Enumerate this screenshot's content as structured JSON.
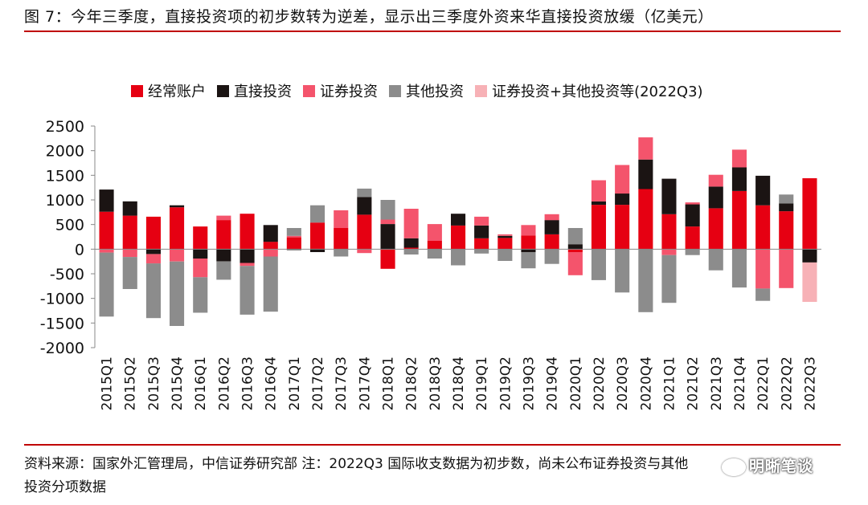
{
  "title": "图 7：今年三季度，直接投资项的初步数转为逆差，显示出三季度外资来华直接投资放缓（亿美元）",
  "source_line1": "资料来源：国家外汇管理局，中信证券研究部 注：2022Q3 国际收支数据为初步数，尚未公布证券投资与其他",
  "source_line2": "投资分项数据",
  "watermark": "明晰笔谈",
  "chart_data": {
    "type": "bar",
    "stacked": true,
    "categories": [
      "2015Q1",
      "2015Q2",
      "2015Q3",
      "2015Q4",
      "2016Q1",
      "2016Q2",
      "2016Q3",
      "2016Q4",
      "2017Q1",
      "2017Q2",
      "2017Q3",
      "2017Q4",
      "2018Q1",
      "2018Q2",
      "2018Q3",
      "2018Q4",
      "2019Q1",
      "2019Q2",
      "2019Q3",
      "2019Q4",
      "2020Q1",
      "2020Q2",
      "2020Q3",
      "2020Q4",
      "2021Q1",
      "2021Q2",
      "2021Q3",
      "2021Q4",
      "2022Q1",
      "2022Q2",
      "2022Q3"
    ],
    "series": [
      {
        "name": "经常账户",
        "color": "#e60012",
        "values": [
          760,
          680,
          660,
          850,
          460,
          590,
          720,
          150,
          240,
          540,
          430,
          700,
          -400,
          30,
          170,
          480,
          220,
          230,
          280,
          300,
          -60,
          900,
          900,
          1220,
          710,
          460,
          830,
          1180,
          890,
          770,
          1440
        ]
      },
      {
        "name": "直接投资",
        "color": "#1b1413",
        "values": [
          450,
          290,
          -100,
          40,
          -190,
          -250,
          -280,
          340,
          -20,
          -60,
          0,
          360,
          510,
          190,
          0,
          240,
          260,
          40,
          -60,
          290,
          100,
          70,
          230,
          600,
          720,
          450,
          440,
          480,
          600,
          160,
          -270
        ]
      },
      {
        "name": "证券投资",
        "color": "#f4546c",
        "values": [
          -70,
          -160,
          -190,
          -250,
          -380,
          90,
          -60,
          -150,
          30,
          0,
          360,
          -80,
          90,
          600,
          340,
          0,
          180,
          30,
          210,
          120,
          -470,
          430,
          580,
          450,
          -120,
          40,
          240,
          360,
          -800,
          -790,
          0
        ]
      },
      {
        "name": "其他投资",
        "color": "#8c8c8c",
        "values": [
          -1300,
          -650,
          -1110,
          -1310,
          -720,
          -370,
          -990,
          -1120,
          160,
          350,
          -150,
          170,
          400,
          -110,
          -190,
          -330,
          -90,
          -240,
          -330,
          -300,
          330,
          -630,
          -880,
          -1280,
          -970,
          -120,
          -430,
          -780,
          -250,
          180,
          0
        ]
      },
      {
        "name": "证券投资+其他投资等(2022Q3)",
        "color": "#f7b1b6",
        "values": [
          0,
          0,
          0,
          0,
          0,
          0,
          0,
          0,
          0,
          0,
          0,
          0,
          0,
          0,
          0,
          0,
          0,
          0,
          0,
          0,
          0,
          0,
          0,
          0,
          0,
          0,
          0,
          0,
          0,
          0,
          -800
        ]
      }
    ],
    "ylim": [
      -2000,
      2500
    ],
    "yticks": [
      2500,
      2000,
      1500,
      1000,
      500,
      0,
      -500,
      -1000,
      -1500,
      -2000
    ],
    "legend_position": "top",
    "grid": false
  }
}
